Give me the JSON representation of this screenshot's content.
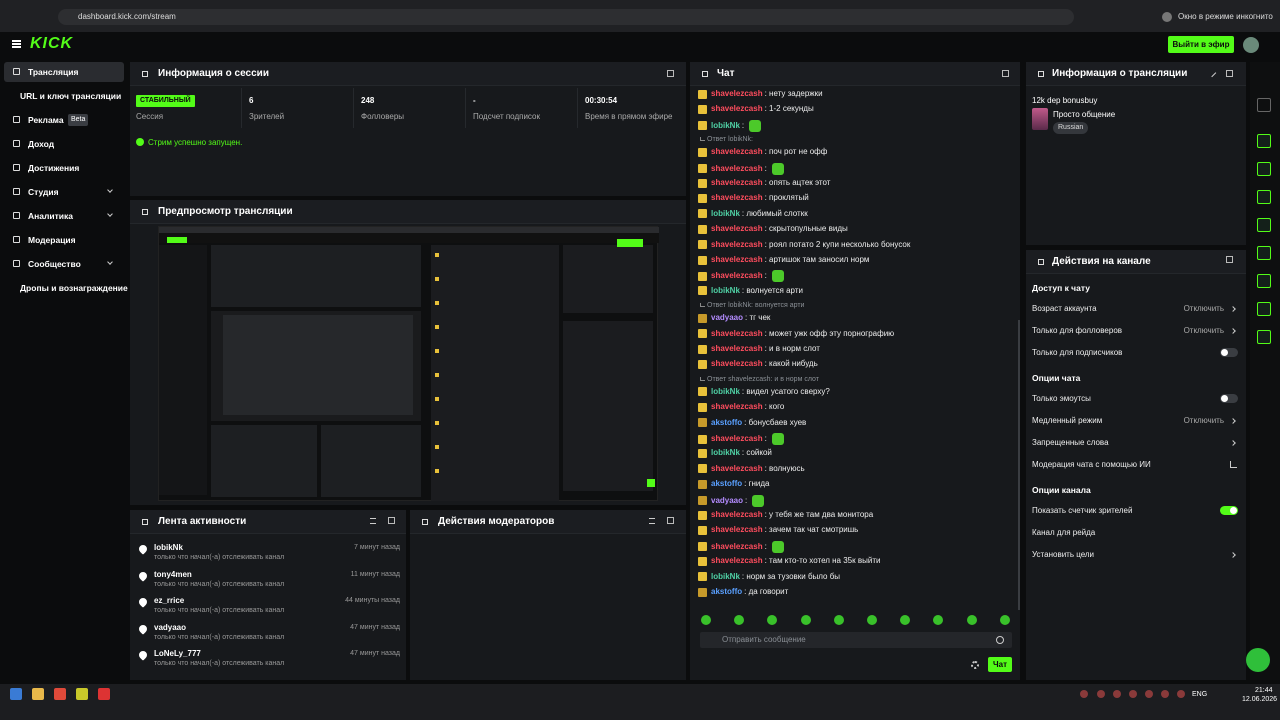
{
  "browser": {
    "url": "dashboard.kick.com/stream",
    "incognito": "Окно в режиме инкогнито"
  },
  "header": {
    "logo": "KICK",
    "go_live": "Выйти в эфир"
  },
  "sidebar": {
    "items": [
      {
        "label": "Трансляция",
        "active": true
      },
      {
        "label": "URL и ключ трансляции"
      },
      {
        "label": "Реклама",
        "badge": "Beta"
      },
      {
        "label": "Доход"
      },
      {
        "label": "Достижения"
      },
      {
        "label": "Студия",
        "expand": true
      },
      {
        "label": "Аналитика",
        "expand": true
      },
      {
        "label": "Модерация"
      },
      {
        "label": "Сообщество",
        "expand": true
      },
      {
        "label": "Дропы и вознаграждение"
      }
    ]
  },
  "session": {
    "title": "Информация о сессии",
    "stats": [
      {
        "value": "СТАБИЛЬНЫЙ",
        "label": "Сессия",
        "pill": true
      },
      {
        "value": "6",
        "label": "Зрителей"
      },
      {
        "value": "248",
        "label": "Фолловеры"
      },
      {
        "value": "-",
        "label": "Подсчет подписок"
      },
      {
        "value": "00:30:54",
        "label": "Время в прямом эфире"
      }
    ],
    "status": "Стрим успешно запущен."
  },
  "preview": {
    "title": "Предпросмотр трансляции"
  },
  "activity": {
    "title": "Лента активности",
    "items": [
      {
        "user": "lobikNk",
        "action": "только что начал(-а) отслеживать канал",
        "time": "7 минут назад"
      },
      {
        "user": "tony4men",
        "action": "только что начал(-а) отслеживать канал",
        "time": "11 минут назад"
      },
      {
        "user": "ez_rrice",
        "action": "только что начал(-а) отслеживать канал",
        "time": "44 минуты назад"
      },
      {
        "user": "vadyaao",
        "action": "только что начал(-а) отслеживать канал",
        "time": "47 минут назад"
      },
      {
        "user": "LoNeLy_777",
        "action": "только что начал(-а) отслеживать канал",
        "time": "47 минут назад"
      }
    ]
  },
  "moderators": {
    "title": "Действия модераторов"
  },
  "chat": {
    "title": "Чат",
    "messages": [
      {
        "user": "shavelezcash",
        "color": "#ff4d5e",
        "text": ": нету задержки"
      },
      {
        "user": "shavelezcash",
        "color": "#ff4d5e",
        "text": ": 1-2 секунды"
      },
      {
        "user": "lobikNk",
        "color": "#4fd1a5",
        "text": ":",
        "emote": true
      },
      {
        "reply": "Ответ lobikNk:"
      },
      {
        "user": "shavelezcash",
        "color": "#ff4d5e",
        "text": ": поч рот не офф"
      },
      {
        "user": "shavelezcash",
        "color": "#ff4d5e",
        "text": ":",
        "emote": true
      },
      {
        "user": "shavelezcash",
        "color": "#ff4d5e",
        "text": ": опять ацтек этот"
      },
      {
        "user": "shavelezcash",
        "color": "#ff4d5e",
        "text": ": проклятый"
      },
      {
        "user": "lobikNk",
        "color": "#4fd1a5",
        "text": ": любимый слоткк"
      },
      {
        "user": "shavelezcash",
        "color": "#ff4d5e",
        "text": ": скрытопульные виды"
      },
      {
        "user": "shavelezcash",
        "color": "#ff4d5e",
        "text": ": роял потато 2 купи несколько бонусок"
      },
      {
        "user": "shavelezcash",
        "color": "#ff4d5e",
        "text": ": артишок там заносил норм"
      },
      {
        "user": "shavelezcash",
        "color": "#ff4d5e",
        "text": ":",
        "emote": true
      },
      {
        "user": "lobikNk",
        "color": "#4fd1a5",
        "text": ": волнуется арти"
      },
      {
        "reply": "Ответ lobikNk: волнуется арти"
      },
      {
        "user": "vadyaao",
        "color": "#b48cff",
        "text": ": тг чек"
      },
      {
        "user": "shavelezcash",
        "color": "#ff4d5e",
        "text": ": может ужк офф эту порнографию"
      },
      {
        "user": "shavelezcash",
        "color": "#ff4d5e",
        "text": ": и в норм слот"
      },
      {
        "user": "shavelezcash",
        "color": "#ff4d5e",
        "text": ": какой нибудь"
      },
      {
        "reply": "Ответ shavelezcash: и в норм слот"
      },
      {
        "user": "lobikNk",
        "color": "#4fd1a5",
        "text": ": видел усатого сверху?"
      },
      {
        "user": "shavelezcash",
        "color": "#ff4d5e",
        "text": ": кого"
      },
      {
        "user": "akstoffo",
        "color": "#5aa0ff",
        "text": ": бонусбаев хуев"
      },
      {
        "user": "shavelezcash",
        "color": "#ff4d5e",
        "text": ":",
        "emote": true
      },
      {
        "user": "lobikNk",
        "color": "#4fd1a5",
        "text": ": сойкой"
      },
      {
        "user": "shavelezcash",
        "color": "#ff4d5e",
        "text": ": волнуюсь"
      },
      {
        "user": "akstoffo",
        "color": "#5aa0ff",
        "text": ": гнида"
      },
      {
        "user": "vadyaao",
        "color": "#b48cff",
        "text": ":",
        "emote": true
      },
      {
        "user": "shavelezcash",
        "color": "#ff4d5e",
        "text": ": у тебя же там два монитора"
      },
      {
        "user": "shavelezcash",
        "color": "#ff4d5e",
        "text": ": зачем так чат смотришь"
      },
      {
        "user": "shavelezcash",
        "color": "#ff4d5e",
        "text": ":",
        "emote": true
      },
      {
        "user": "shavelezcash",
        "color": "#ff4d5e",
        "text": ": там кто-то хотел на 35к выйти"
      },
      {
        "user": "lobikNk",
        "color": "#4fd1a5",
        "text": ": норм за тузовки было бы"
      },
      {
        "user": "akstoffo",
        "color": "#5aa0ff",
        "text": ": да говорит"
      }
    ],
    "input_placeholder": "Отправить сообщение",
    "send": "Чат"
  },
  "stream_info": {
    "title": "Информация о трансляции",
    "stream_title": "12k dep bonusbuy",
    "category": "Просто общение",
    "tag": "Russian"
  },
  "channel_actions": {
    "title": "Действия на канале",
    "sections": [
      {
        "title": "Доступ к чату",
        "rows": [
          {
            "label": "Возраст аккаунта",
            "value": "Отключить",
            "chevron": true
          },
          {
            "label": "Только для фолловеров",
            "value": "Отключить",
            "chevron": true
          },
          {
            "label": "Только для подписчиков",
            "toggle": false
          }
        ]
      },
      {
        "title": "Опции чата",
        "rows": [
          {
            "label": "Только эмоутсы",
            "toggle": false
          },
          {
            "label": "Медленный режим",
            "value": "Отключить",
            "chevron": true
          },
          {
            "label": "Запрещенные слова",
            "chevron": true
          },
          {
            "label": "Модерация чата с помощью ИИ",
            "external": true
          }
        ]
      },
      {
        "title": "Опции канала",
        "rows": [
          {
            "label": "Показать счетчик зрителей",
            "toggle": true
          },
          {
            "label": "Канал для рейда"
          },
          {
            "label": "Установить цели",
            "chevron": true
          }
        ]
      }
    ]
  },
  "taskbar": {
    "lang": "ENG",
    "time": "21:44",
    "date": "12.06.2026"
  }
}
